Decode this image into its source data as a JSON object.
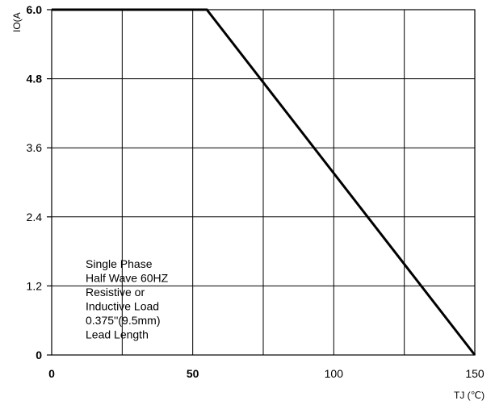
{
  "chart_data": {
    "type": "line",
    "xlabel": "TJ (℃)",
    "ylabel": "IO(A",
    "xlim": [
      0,
      150
    ],
    "ylim": [
      0,
      6.0
    ],
    "x_ticks": [
      {
        "value": 0,
        "label": "0",
        "bold": true
      },
      {
        "value": 50,
        "label": "50",
        "bold": true
      },
      {
        "value": 100,
        "label": "100",
        "bold": false
      },
      {
        "value": 150,
        "label": "150",
        "bold": false
      }
    ],
    "y_ticks": [
      {
        "value": 0,
        "label": "0",
        "bold": true
      },
      {
        "value": 1.2,
        "label": "1.2",
        "bold": false
      },
      {
        "value": 2.4,
        "label": "2.4",
        "bold": false
      },
      {
        "value": 3.6,
        "label": "3.6",
        "bold": false
      },
      {
        "value": 4.8,
        "label": "4.8",
        "bold": true
      },
      {
        "value": 6.0,
        "label": "6.0",
        "bold": true
      }
    ],
    "x_gridlines": [
      25,
      50,
      75,
      100,
      125
    ],
    "y_gridlines": [
      1.2,
      2.4,
      3.6,
      4.8
    ],
    "grid": true,
    "series": [
      {
        "x": [
          0,
          55,
          150
        ],
        "y": [
          6.0,
          6.0,
          0
        ],
        "color": "#000000"
      }
    ],
    "annotation": [
      "Single Phase",
      "Half Wave 60HZ",
      "Resistive or",
      "Inductive Load",
      "0.375''(9.5mm)",
      "Lead Length"
    ]
  }
}
